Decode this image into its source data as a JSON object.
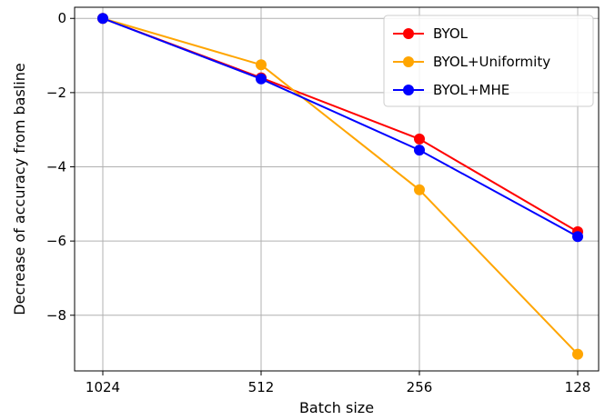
{
  "chart_data": {
    "type": "line",
    "categories": [
      "1024",
      "512",
      "256",
      "128"
    ],
    "series": [
      {
        "name": "BYOL",
        "color": "#ff0000",
        "values": [
          0,
          -1.6,
          -3.25,
          -5.75
        ]
      },
      {
        "name": "BYOL+Uniformity",
        "color": "#ffa500",
        "values": [
          0,
          -1.25,
          -4.62,
          -9.05
        ]
      },
      {
        "name": "BYOL+MHE",
        "color": "#0000ff",
        "values": [
          0,
          -1.63,
          -3.55,
          -5.88
        ]
      }
    ],
    "xlabel": "Batch size",
    "ylabel": "Decrease of accuracy from basline",
    "ylim": [
      -9.5,
      0.3
    ],
    "yticks": [
      0,
      -2,
      -4,
      -6,
      -8
    ],
    "ytick_labels": [
      "0",
      "−2",
      "−4",
      "−6",
      "−8"
    ],
    "grid": true,
    "legend_position": "top-right"
  }
}
